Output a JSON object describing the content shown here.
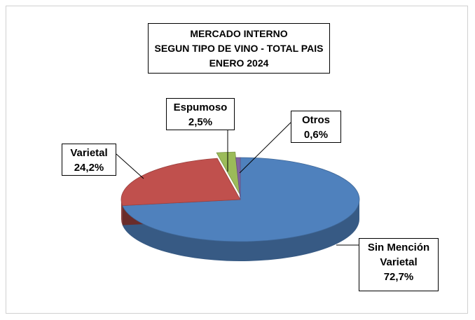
{
  "chart_data": {
    "type": "pie",
    "title": [
      "MERCADO INTERNO",
      "SEGUN TIPO DE VINO - TOTAL PAIS",
      "ENERO 2024"
    ],
    "categories": [
      "Sin Mención Varietal",
      "Varietal",
      "Espumoso",
      "Otros"
    ],
    "values": [
      72.7,
      24.2,
      2.5,
      0.6
    ],
    "value_labels": [
      "72,7%",
      "24,2%",
      "2,5%",
      "0,6%"
    ],
    "colors": [
      "#4f81bd",
      "#c0504d",
      "#9bbb59",
      "#8064a2"
    ]
  }
}
